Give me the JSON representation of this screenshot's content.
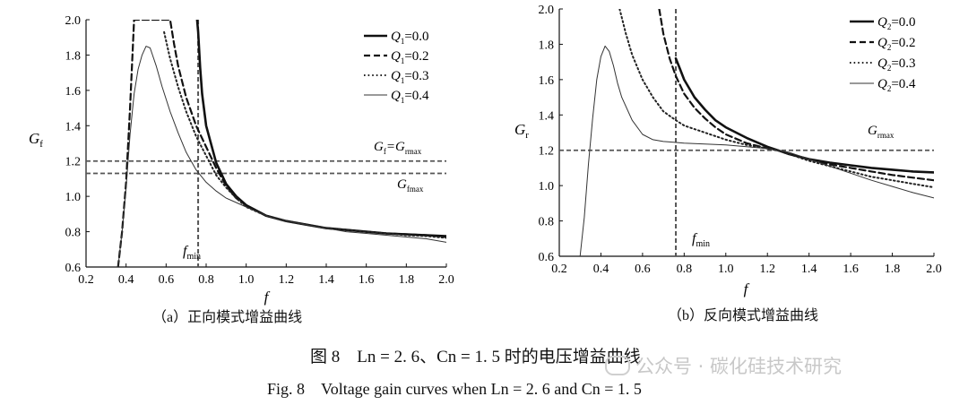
{
  "chart_data": [
    {
      "id": "a",
      "type": "line",
      "ylabel": "G",
      "ylabel_sub": "f",
      "xlabel": "f",
      "xlim": [
        0.2,
        2.0
      ],
      "ylim": [
        0.6,
        2.0
      ],
      "xticks": [
        "0.2",
        "0.4",
        "0.6",
        "0.8",
        "1.0",
        "1.2",
        "1.4",
        "1.6",
        "1.8",
        "2.0"
      ],
      "yticks": [
        "0.6",
        "0.8",
        "1.0",
        "1.2",
        "1.4",
        "1.6",
        "1.8",
        "2.0"
      ],
      "legend_position": "top-right",
      "series": [
        {
          "name": "Q1=0.0",
          "label_main": "Q",
          "label_sub": "1",
          "label_value": "=0.0",
          "style": "solid-thick",
          "x": [
            0.755,
            0.76,
            0.77,
            0.78,
            0.8,
            0.85,
            0.9,
            0.95,
            1.0,
            1.1,
            1.2,
            1.3,
            1.4,
            1.5,
            1.6,
            1.7,
            1.8,
            1.9,
            2.0
          ],
          "y": [
            2.0,
            1.93,
            1.73,
            1.58,
            1.4,
            1.19,
            1.07,
            1.0,
            0.95,
            0.89,
            0.86,
            0.84,
            0.82,
            0.81,
            0.8,
            0.79,
            0.785,
            0.78,
            0.775
          ]
        },
        {
          "name": "Q1=0.2",
          "label_main": "Q",
          "label_sub": "1",
          "label_value": "=0.2",
          "style": "dashed",
          "x": [
            0.36,
            0.38,
            0.4,
            0.42,
            0.44,
            0.62,
            0.64,
            0.66,
            0.7,
            0.75,
            0.8,
            0.85,
            0.9,
            0.95,
            1.0,
            1.1,
            1.2,
            1.3,
            1.4,
            1.5,
            1.6,
            1.7,
            1.8,
            1.9,
            2.0
          ],
          "y": [
            0.6,
            0.8,
            1.08,
            1.5,
            2.0,
            2.0,
            1.86,
            1.74,
            1.56,
            1.4,
            1.28,
            1.16,
            1.06,
            0.99,
            0.95,
            0.89,
            0.86,
            0.84,
            0.82,
            0.81,
            0.8,
            0.79,
            0.785,
            0.78,
            0.77
          ]
        },
        {
          "name": "Q1=0.3",
          "label_main": "Q",
          "label_sub": "1",
          "label_value": "=0.3",
          "style": "dotted",
          "x": [
            0.59,
            0.62,
            0.66,
            0.7,
            0.75,
            0.8,
            0.85,
            0.9,
            0.95,
            1.0,
            1.1,
            1.2,
            1.3,
            1.4,
            1.5,
            1.6,
            1.7,
            1.8,
            1.9,
            2.0
          ],
          "y": [
            1.93,
            1.78,
            1.62,
            1.48,
            1.34,
            1.23,
            1.12,
            1.05,
            0.99,
            0.94,
            0.89,
            0.86,
            0.84,
            0.82,
            0.81,
            0.8,
            0.79,
            0.78,
            0.775,
            0.765
          ]
        },
        {
          "name": "Q1=0.4",
          "label_main": "Q",
          "label_sub": "1",
          "label_value": "=0.4",
          "style": "thin",
          "x": [
            0.36,
            0.38,
            0.4,
            0.42,
            0.44,
            0.46,
            0.48,
            0.5,
            0.52,
            0.55,
            0.58,
            0.62,
            0.66,
            0.7,
            0.75,
            0.8,
            0.85,
            0.9,
            1.0,
            1.1,
            1.2,
            1.3,
            1.4,
            1.5,
            1.6,
            1.7,
            1.8,
            1.9,
            2.0
          ],
          "y": [
            0.6,
            0.8,
            1.05,
            1.35,
            1.58,
            1.72,
            1.8,
            1.85,
            1.84,
            1.74,
            1.62,
            1.48,
            1.36,
            1.25,
            1.15,
            1.08,
            1.03,
            0.99,
            0.94,
            0.89,
            0.86,
            0.84,
            0.82,
            0.8,
            0.79,
            0.78,
            0.77,
            0.76,
            0.74
          ]
        }
      ],
      "hlines": [
        {
          "y": 1.2,
          "label": "Gf=Grmax",
          "l_a": "G",
          "l_a_sub": "f",
          "l_b": "=G",
          "l_b_sub": "rmax"
        },
        {
          "y": 1.13,
          "label": "Gfmax",
          "l_a": "G",
          "l_a_sub": "fmax",
          "l_b": "",
          "l_b_sub": ""
        }
      ],
      "vline": {
        "x": 0.76,
        "label": "fmin",
        "l_a": "f",
        "l_a_sub": "min"
      },
      "caption": "（a）正向模式增益曲线"
    },
    {
      "id": "b",
      "type": "line",
      "ylabel": "G",
      "ylabel_sub": "r",
      "xlabel": "f",
      "xlim": [
        0.2,
        2.0
      ],
      "ylim": [
        0.6,
        2.0
      ],
      "xticks": [
        "0.2",
        "0.4",
        "0.6",
        "0.8",
        "1.0",
        "1.2",
        "1.4",
        "1.6",
        "1.8",
        "2.0"
      ],
      "yticks": [
        "0.6",
        "0.8",
        "1.0",
        "1.2",
        "1.4",
        "1.6",
        "1.8",
        "2.0"
      ],
      "legend_position": "top-right",
      "series": [
        {
          "name": "Q2=0.0",
          "label_main": "Q",
          "label_sub": "2",
          "label_value": "=0.0",
          "style": "solid-thick",
          "x": [
            0.76,
            0.78,
            0.8,
            0.85,
            0.9,
            0.95,
            1.0,
            1.1,
            1.2,
            1.25,
            1.3,
            1.4,
            1.5,
            1.6,
            1.7,
            1.8,
            1.9,
            2.0
          ],
          "y": [
            1.72,
            1.66,
            1.6,
            1.5,
            1.43,
            1.37,
            1.33,
            1.27,
            1.22,
            1.2,
            1.18,
            1.15,
            1.13,
            1.115,
            1.1,
            1.09,
            1.08,
            1.075
          ]
        },
        {
          "name": "Q2=0.2",
          "label_main": "Q",
          "label_sub": "2",
          "label_value": "=0.2",
          "style": "dashed",
          "x": [
            0.68,
            0.7,
            0.73,
            0.76,
            0.8,
            0.85,
            0.9,
            0.95,
            1.0,
            1.1,
            1.2,
            1.25,
            1.3,
            1.4,
            1.5,
            1.6,
            1.7,
            1.8,
            1.9,
            2.0
          ],
          "y": [
            2.0,
            1.86,
            1.72,
            1.62,
            1.52,
            1.44,
            1.38,
            1.33,
            1.29,
            1.24,
            1.21,
            1.2,
            1.18,
            1.15,
            1.12,
            1.1,
            1.08,
            1.06,
            1.045,
            1.03
          ]
        },
        {
          "name": "Q2=0.3",
          "label_main": "Q",
          "label_sub": "2",
          "label_value": "=0.3",
          "style": "dotted",
          "x": [
            0.49,
            0.52,
            0.55,
            0.6,
            0.65,
            0.7,
            0.76,
            0.8,
            0.85,
            0.9,
            1.0,
            1.1,
            1.2,
            1.25,
            1.3,
            1.4,
            1.5,
            1.6,
            1.7,
            1.8,
            1.9,
            2.0
          ],
          "y": [
            2.0,
            1.86,
            1.74,
            1.6,
            1.5,
            1.42,
            1.37,
            1.34,
            1.32,
            1.3,
            1.26,
            1.23,
            1.21,
            1.2,
            1.18,
            1.14,
            1.11,
            1.08,
            1.05,
            1.03,
            1.01,
            0.99
          ]
        },
        {
          "name": "Q2=0.4",
          "label_main": "Q",
          "label_sub": "2",
          "label_value": "=0.4",
          "style": "thin",
          "x": [
            0.3,
            0.32,
            0.34,
            0.36,
            0.38,
            0.4,
            0.42,
            0.44,
            0.46,
            0.48,
            0.5,
            0.55,
            0.6,
            0.65,
            0.7,
            0.75,
            0.8,
            0.9,
            1.0,
            1.1,
            1.2,
            1.3,
            1.4,
            1.5,
            1.6,
            1.7,
            1.8,
            1.9,
            2.0
          ],
          "y": [
            0.6,
            0.82,
            1.12,
            1.38,
            1.6,
            1.73,
            1.79,
            1.76,
            1.68,
            1.58,
            1.5,
            1.37,
            1.29,
            1.26,
            1.25,
            1.245,
            1.24,
            1.235,
            1.23,
            1.22,
            1.21,
            1.19,
            1.15,
            1.11,
            1.07,
            1.03,
            0.995,
            0.96,
            0.93
          ]
        }
      ],
      "hlines": [
        {
          "y": 1.2,
          "label": "Grmax",
          "l_a": "G",
          "l_a_sub": "rmax",
          "l_b": "",
          "l_b_sub": ""
        }
      ],
      "vline": {
        "x": 0.76,
        "label": "fmin",
        "l_a": "f",
        "l_a_sub": "min"
      },
      "caption": "（b）反向模式增益曲线"
    }
  ],
  "figure_caption_cn": "图 8　Ln = 2. 6、Cn = 1. 5 时的电压增益曲线",
  "figure_caption_en": "Fig. 8　Voltage gain curves when Ln = 2. 6 and Cn = 1. 5",
  "watermark": "公众号 · 碳化硅技术研究"
}
